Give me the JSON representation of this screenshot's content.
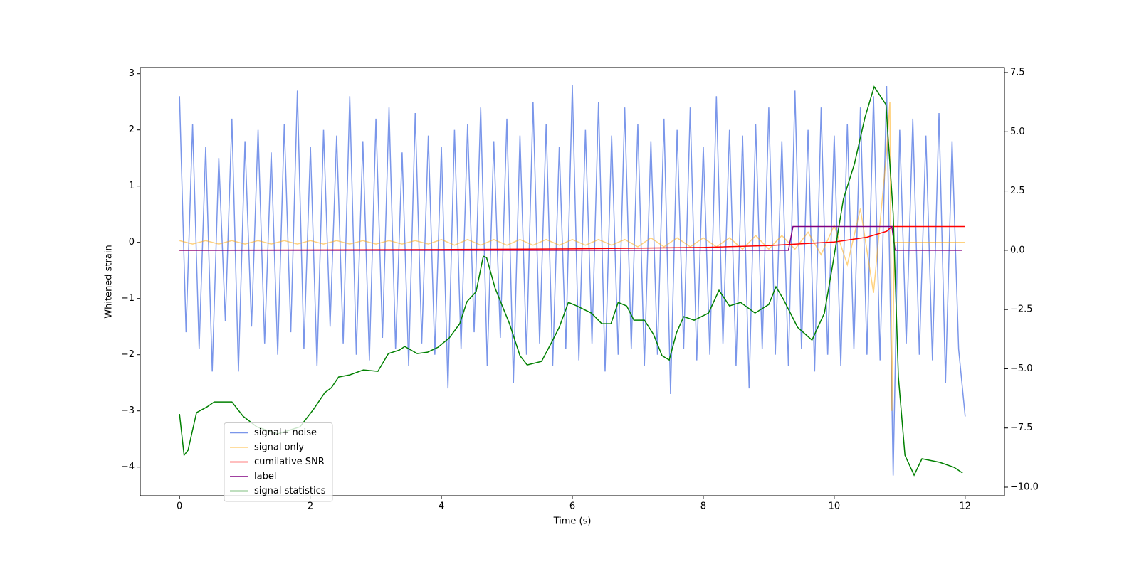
{
  "chart_data": {
    "type": "line",
    "xlabel": "Time (s)",
    "ylabel": "Whitened strain",
    "xlim": [
      -0.6,
      12.6
    ],
    "xticks": [
      0,
      2,
      4,
      6,
      8,
      10,
      12
    ],
    "ylim": [
      -4.51,
      3.11
    ],
    "yticks": [
      {
        "value": -4,
        "label": "−4"
      },
      {
        "value": -3,
        "label": "−3"
      },
      {
        "value": -2,
        "label": "−2"
      },
      {
        "value": -1,
        "label": "−1"
      },
      0,
      1,
      2,
      3
    ],
    "y2lim": [
      -10.36,
      7.71
    ],
    "y2ticks": [
      {
        "value": -10,
        "label": "−10.0"
      },
      {
        "value": -7.5,
        "label": "−7.5"
      },
      {
        "value": -5,
        "label": "−5.0"
      },
      {
        "value": -2.5,
        "label": "−2.5"
      },
      {
        "value": 0,
        "label": "0.0"
      },
      {
        "value": 2.5,
        "label": "2.5"
      },
      {
        "value": 5,
        "label": "5.0"
      },
      {
        "value": 7.5,
        "label": "7.5"
      }
    ],
    "legend": "lower left",
    "series": [
      {
        "name": "signal+ noise",
        "color": "#4169e1",
        "opacity": 0.7,
        "x": [
          0,
          0.1,
          0.2,
          0.3,
          0.4,
          0.5,
          0.6,
          0.7,
          0.8,
          0.9,
          1,
          1.1,
          1.2,
          1.3,
          1.4,
          1.5,
          1.6,
          1.7,
          1.8,
          1.9,
          2,
          2.1,
          2.2,
          2.3,
          2.4,
          2.5,
          2.6,
          2.7,
          2.8,
          2.9,
          3,
          3.1,
          3.2,
          3.3,
          3.4,
          3.5,
          3.6,
          3.7,
          3.8,
          3.9,
          4,
          4.1,
          4.2,
          4.3,
          4.4,
          4.5,
          4.6,
          4.7,
          4.8,
          4.9,
          5,
          5.1,
          5.2,
          5.3,
          5.4,
          5.5,
          5.6,
          5.7,
          5.8,
          5.9,
          6,
          6.1,
          6.2,
          6.3,
          6.4,
          6.5,
          6.6,
          6.7,
          6.8,
          6.9,
          7,
          7.1,
          7.2,
          7.3,
          7.4,
          7.5,
          7.6,
          7.7,
          7.8,
          7.9,
          8,
          8.1,
          8.2,
          8.3,
          8.4,
          8.5,
          8.6,
          8.7,
          8.8,
          8.9,
          9,
          9.1,
          9.2,
          9.3,
          9.4,
          9.5,
          9.6,
          9.7,
          9.8,
          9.9,
          10,
          10.1,
          10.2,
          10.3,
          10.4,
          10.5,
          10.6,
          10.7,
          10.8,
          10.9,
          11,
          11.1,
          11.2,
          11.3,
          11.4,
          11.5,
          11.6,
          11.7,
          11.8,
          11.9,
          12
        ],
        "values": [
          2.6,
          -1.6,
          2.1,
          -1.9,
          1.7,
          -2.3,
          1.5,
          -1.4,
          2.2,
          -2.3,
          1.8,
          -1.5,
          2.0,
          -1.8,
          1.6,
          -2.0,
          2.1,
          -1.6,
          2.7,
          -1.9,
          1.7,
          -2.2,
          2.0,
          -1.5,
          1.9,
          -1.8,
          2.6,
          -2.0,
          1.8,
          -2.1,
          2.2,
          -1.7,
          2.4,
          -1.9,
          1.6,
          -2.2,
          2.3,
          -1.8,
          1.9,
          -2.0,
          1.7,
          -2.6,
          2.0,
          -1.9,
          2.1,
          -1.6,
          2.4,
          -2.2,
          1.8,
          -1.7,
          2.2,
          -2.5,
          1.9,
          -2.0,
          2.5,
          -1.8,
          2.1,
          -2.2,
          1.7,
          -1.9,
          2.8,
          -2.1,
          2.0,
          -1.8,
          2.5,
          -2.3,
          1.9,
          -2.0,
          2.4,
          -1.9,
          2.1,
          -2.2,
          1.8,
          -2.0,
          2.2,
          -2.7,
          2.0,
          -1.9,
          2.4,
          -2.1,
          1.7,
          -2.0,
          2.6,
          -1.8,
          2.0,
          -2.2,
          1.9,
          -2.6,
          2.1,
          -1.9,
          2.4,
          -2.0,
          1.8,
          -2.2,
          2.7,
          -1.9,
          2.0,
          -2.3,
          2.4,
          -2.0,
          1.9,
          -2.2,
          2.1,
          -1.9,
          2.4,
          -2.0,
          2.6,
          -2.1,
          2.78,
          -4.15,
          2.0,
          -1.8,
          2.2,
          -2.0,
          1.9,
          -2.1,
          2.3,
          -2.5,
          1.8,
          -1.9,
          -3.1
        ]
      },
      {
        "name": "signal only",
        "color": "#ffa500",
        "opacity": 0.5,
        "x": [
          0,
          0.2,
          0.4,
          0.6,
          0.8,
          1,
          1.2,
          1.4,
          1.6,
          1.8,
          2,
          2.2,
          2.4,
          2.6,
          2.8,
          3,
          3.2,
          3.4,
          3.6,
          3.8,
          4,
          4.2,
          4.4,
          4.6,
          4.8,
          5,
          5.2,
          5.4,
          5.6,
          5.8,
          6,
          6.2,
          6.4,
          6.6,
          6.8,
          7,
          7.2,
          7.4,
          7.6,
          7.8,
          8,
          8.2,
          8.4,
          8.6,
          8.8,
          9,
          9.2,
          9.4,
          9.6,
          9.8,
          10,
          10.2,
          10.4,
          10.6,
          10.8,
          10.85,
          10.88,
          10.92,
          12
        ],
        "values": [
          0.03,
          -0.03,
          0.03,
          -0.03,
          0.03,
          -0.03,
          0.03,
          -0.03,
          0.03,
          -0.03,
          0.03,
          -0.03,
          0.03,
          -0.03,
          0.03,
          -0.03,
          0.03,
          -0.03,
          0.03,
          -0.03,
          0.05,
          -0.05,
          0.05,
          -0.05,
          0.05,
          -0.05,
          0.05,
          -0.05,
          0.05,
          -0.05,
          0.05,
          -0.05,
          0.05,
          -0.05,
          0.05,
          -0.08,
          0.08,
          -0.08,
          0.08,
          -0.08,
          0.08,
          -0.08,
          0.08,
          -0.12,
          0.12,
          -0.12,
          0.12,
          -0.12,
          0.18,
          -0.22,
          0.3,
          -0.4,
          0.6,
          -0.9,
          1.6,
          2.5,
          -3.0,
          0,
          0
        ]
      },
      {
        "name": "cumilative SNR",
        "color": "#ff0000",
        "axis": "y2",
        "x": [
          0,
          2,
          4,
          6,
          8,
          9,
          10,
          10.5,
          10.8,
          10.88,
          12
        ],
        "values": [
          0,
          0.01,
          0.03,
          0.06,
          0.12,
          0.2,
          0.35,
          0.55,
          0.8,
          1.0,
          1.0
        ]
      },
      {
        "name": "label",
        "color": "#800080",
        "axis": "y2",
        "x": [
          0,
          9.3,
          9.37,
          10.88,
          10.93,
          11.95
        ],
        "values": [
          0,
          0,
          1,
          1,
          0,
          0
        ]
      },
      {
        "name": "signal statistics",
        "color": "#008000",
        "axis": "y2",
        "x": [
          0,
          0.07,
          0.13,
          0.26,
          0.42,
          0.53,
          0.8,
          0.97,
          1.18,
          1.5,
          1.84,
          2.05,
          2.22,
          2.32,
          2.43,
          2.6,
          2.81,
          3.03,
          3.19,
          3.36,
          3.44,
          3.63,
          3.79,
          3.95,
          4.12,
          4.28,
          4.39,
          4.53,
          4.64,
          4.69,
          4.82,
          5.04,
          5.2,
          5.31,
          5.53,
          5.69,
          5.8,
          5.94,
          6.07,
          6.29,
          6.45,
          6.59,
          6.7,
          6.83,
          6.94,
          7.1,
          7.24,
          7.37,
          7.48,
          7.59,
          7.7,
          7.86,
          8.08,
          8.24,
          8.4,
          8.57,
          8.79,
          9.0,
          9.11,
          9.22,
          9.44,
          9.66,
          9.85,
          9.98,
          10.14,
          10.31,
          10.47,
          10.61,
          10.79,
          10.9,
          10.98,
          11.08,
          11.22,
          11.34,
          11.61,
          11.83,
          11.96
        ],
        "values": [
          -6.91,
          -8.65,
          -8.44,
          -6.85,
          -6.61,
          -6.4,
          -6.4,
          -7.0,
          -7.45,
          -7.75,
          -7.45,
          -6.7,
          -6.01,
          -5.8,
          -5.35,
          -5.26,
          -5.05,
          -5.11,
          -4.36,
          -4.21,
          -4.06,
          -4.36,
          -4.3,
          -4.09,
          -3.7,
          -3.1,
          -2.17,
          -1.75,
          -0.25,
          -0.31,
          -1.6,
          -3.1,
          -4.45,
          -4.84,
          -4.69,
          -3.85,
          -3.25,
          -2.2,
          -2.35,
          -2.65,
          -3.1,
          -3.1,
          -2.2,
          -2.35,
          -2.95,
          -2.95,
          -3.55,
          -4.45,
          -4.63,
          -3.49,
          -2.8,
          -2.95,
          -2.65,
          -1.69,
          -2.35,
          -2.2,
          -2.65,
          -2.29,
          -1.54,
          -2.05,
          -3.25,
          -3.79,
          -2.65,
          -0.55,
          2.16,
          3.66,
          5.61,
          6.9,
          6.15,
          1.56,
          -5.35,
          -8.65,
          -9.49,
          -8.8,
          -8.95,
          -9.16,
          -9.4
        ]
      }
    ]
  }
}
